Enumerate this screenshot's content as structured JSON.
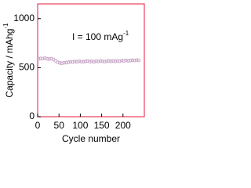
{
  "chart_data": {
    "type": "scatter",
    "ylabel": {
      "text": "Capacity / mAhg",
      "sup": "-1"
    },
    "xlabel": "Cycle number",
    "annotation": {
      "text": "I = 100 mAg",
      "sup": "-1"
    },
    "x": [
      2,
      7,
      12,
      17,
      22,
      27,
      32,
      37,
      42,
      47,
      52,
      57,
      62,
      67,
      72,
      77,
      82,
      87,
      92,
      97,
      102,
      107,
      112,
      117,
      122,
      127,
      132,
      137,
      142,
      147,
      152,
      157,
      162,
      167,
      172,
      177,
      182,
      187,
      192,
      197,
      202,
      207,
      212,
      217,
      222,
      227,
      232,
      237
    ],
    "values": [
      590,
      595,
      592,
      598,
      590,
      588,
      592,
      585,
      570,
      555,
      548,
      545,
      550,
      552,
      556,
      560,
      558,
      562,
      560,
      565,
      562,
      560,
      565,
      568,
      562,
      565,
      560,
      566,
      563,
      568,
      565,
      562,
      566,
      570,
      565,
      568,
      564,
      570,
      566,
      572,
      568,
      575,
      570,
      572,
      576,
      574,
      578,
      575
    ],
    "color": "#c9a6c8",
    "xlim": [
      0,
      250
    ],
    "ylim": [
      0,
      1150
    ],
    "xticks": [
      0,
      50,
      100,
      150,
      200
    ],
    "yticks": [
      0,
      500,
      1000
    ],
    "frame_color": "#e8405e"
  }
}
